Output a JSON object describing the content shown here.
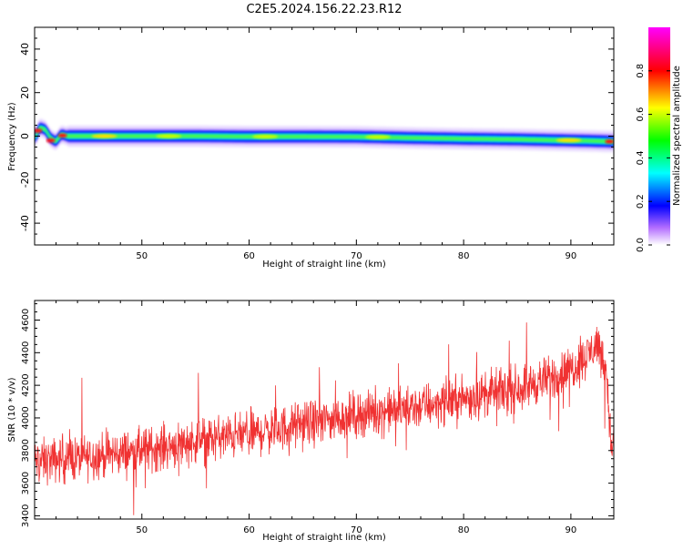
{
  "title": "C2E5.2024.156.22.23.R12",
  "chart_data": [
    {
      "type": "heatmap",
      "xlabel": "Height of straight line (km)",
      "ylabel": "Frequency (Hz)",
      "xlim": [
        40,
        94
      ],
      "ylim": [
        -50,
        50
      ],
      "xticks": [
        50,
        60,
        70,
        80,
        90
      ],
      "yticks": [
        -40,
        -20,
        0,
        20,
        40
      ],
      "ytick_labels": [
        "-40",
        "-20",
        "0",
        "20",
        "40"
      ],
      "colorbar": {
        "label": "Normalized spectral amplitude",
        "range": [
          0,
          1
        ],
        "ticks": [
          0.0,
          0.2,
          0.4,
          0.6,
          0.8
        ],
        "tick_labels": [
          "0.0",
          "0.2",
          "0.4",
          "0.6",
          "0.8"
        ]
      },
      "ridge": {
        "x": [
          40,
          40.5,
          41,
          41.5,
          42,
          42.5,
          43,
          46,
          50,
          55,
          60,
          65,
          70,
          75,
          80,
          85,
          88,
          90,
          92,
          94
        ],
        "y": [
          -1,
          4,
          3,
          -1,
          -2.5,
          1.0,
          0.0,
          0.0,
          0.0,
          0.0,
          -0.2,
          -0.2,
          -0.3,
          -0.8,
          -1.2,
          -1.5,
          -1.8,
          -2.0,
          -2.2,
          -2.5
        ]
      },
      "hotspots": [
        {
          "x": 40.3,
          "y": 2.5,
          "amp": 0.95
        },
        {
          "x": 41.5,
          "y": -2.0,
          "amp": 0.9
        },
        {
          "x": 42.6,
          "y": 0.3,
          "amp": 0.92
        },
        {
          "x": 46.5,
          "y": 0.0,
          "amp": 0.75
        },
        {
          "x": 52.5,
          "y": 0.0,
          "amp": 0.7
        },
        {
          "x": 61.5,
          "y": -0.2,
          "amp": 0.65
        },
        {
          "x": 72.0,
          "y": -0.4,
          "amp": 0.6
        },
        {
          "x": 89.8,
          "y": -1.9,
          "amp": 0.72
        },
        {
          "x": 93.6,
          "y": -2.5,
          "amp": 0.95
        }
      ],
      "grid": false
    },
    {
      "type": "line",
      "xlabel": "Height of straight line (km)",
      "ylabel": "SNR (10 * v/v)",
      "xlim": [
        40,
        94
      ],
      "ylim": [
        3380,
        4720
      ],
      "xticks": [
        50,
        60,
        70,
        80,
        90
      ],
      "yticks": [
        3400,
        3600,
        3800,
        4000,
        4200,
        4400,
        4600
      ],
      "color": "#f03232",
      "trend": {
        "x": [
          40,
          45,
          50,
          55,
          60,
          65,
          70,
          75,
          80,
          85,
          88,
          90,
          91.5,
          92.5,
          93.3,
          93.8,
          94
        ],
        "y": [
          3730,
          3760,
          3800,
          3860,
          3900,
          3960,
          4020,
          4060,
          4120,
          4180,
          4240,
          4300,
          4380,
          4460,
          4300,
          3780,
          3900
        ]
      },
      "noise_amplitude": 150,
      "grid": false
    }
  ]
}
